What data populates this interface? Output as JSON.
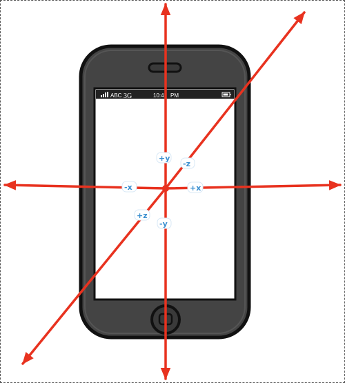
{
  "status_bar": {
    "carrier": "ABC",
    "network": "3G",
    "time": "10:4",
    "meridiem": "PM"
  },
  "axes": {
    "y_positive": "+y",
    "y_negative": "-y",
    "x_positive": "+x",
    "x_negative": "-x",
    "z_positive": "+z",
    "z_negative": "-z"
  },
  "colors": {
    "axis_arrow": "#e8321f",
    "phone_body": "#444444",
    "phone_outline": "#111111",
    "axis_label": "#3a8fd0"
  }
}
